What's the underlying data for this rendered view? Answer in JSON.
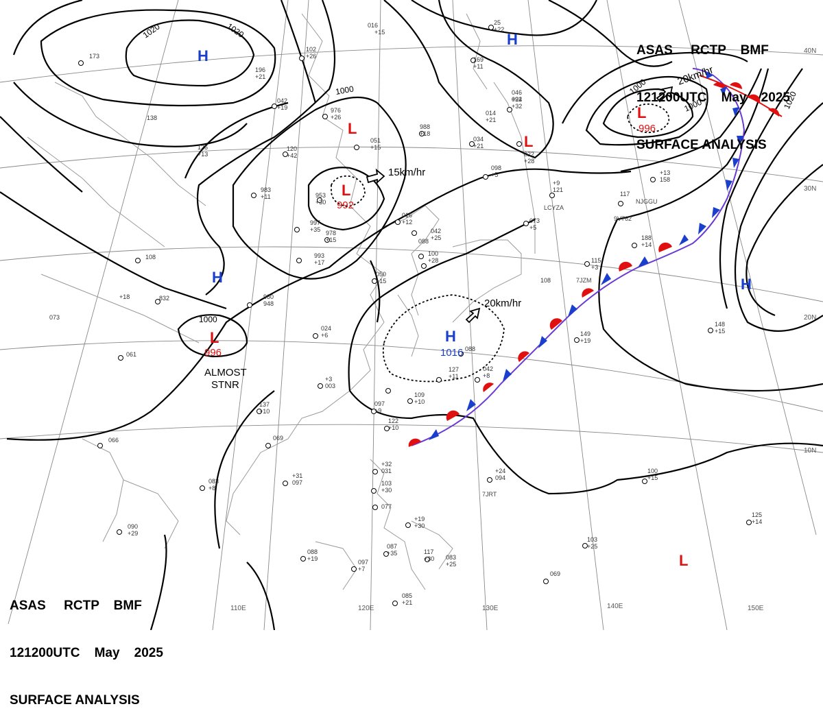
{
  "header": {
    "line1": "ASAS     RCTP    BMF",
    "line2": "121200UTC    May    2025",
    "line3": "SURFACE ANALYSIS"
  },
  "colors": {
    "high": "#1a3fcc",
    "low": "#e01010",
    "front_warm": "#e01010",
    "front_cold": "#1a3fcc",
    "isobar": "#000000",
    "coast": "#999999",
    "grid": "#888888"
  },
  "pressure_centers": [
    {
      "id": "h-northwest",
      "type": "H",
      "value": ""
    },
    {
      "id": "l-north-center",
      "type": "L",
      "value": ""
    },
    {
      "id": "l-mongolia",
      "type": "L",
      "value": "992"
    },
    {
      "id": "l-northeast",
      "type": "L",
      "value": "996"
    },
    {
      "id": "l-manchuria",
      "type": "L",
      "value": ""
    },
    {
      "id": "h-west",
      "type": "H",
      "value": ""
    },
    {
      "id": "l-tibet",
      "type": "L",
      "value": "996"
    },
    {
      "id": "h-taiwan-east",
      "type": "H",
      "value": "1016"
    },
    {
      "id": "h-north-pacific",
      "type": "H",
      "value": ""
    },
    {
      "id": "h-east-pacific",
      "type": "H",
      "value": ""
    },
    {
      "id": "l-southeast",
      "type": "L",
      "value": ""
    }
  ],
  "isobar_labels": [
    "1020",
    "1020",
    "1000",
    "1000",
    "1000",
    "1000",
    "1020"
  ],
  "motions": [
    {
      "id": "motion-mongolia",
      "text": "15km/hr"
    },
    {
      "id": "motion-northeast",
      "text": "20km/hr"
    },
    {
      "id": "motion-taiwan",
      "text": "20km/hr"
    }
  ],
  "annotations": {
    "stationary_line1": "ALMOST",
    "stationary_line2": "STNR"
  },
  "longitude_labels": [
    "110E",
    "120E",
    "130E",
    "140E",
    "150E"
  ],
  "latitude_labels": [
    "40N",
    "30N",
    "20N",
    "10N"
  ],
  "waypoints": [
    "LCYZA",
    "NJGGU",
    "9V762",
    "7JZM",
    "7JRT"
  ],
  "station_values": [
    "016",
    "+15",
    "173",
    "196",
    "+21",
    "042",
    "+19",
    "102",
    "+26",
    "976",
    "+26",
    "988",
    "+18",
    "051",
    "+15",
    "120",
    "+42",
    "126",
    "+13",
    "138",
    "983",
    "+11",
    "953",
    "+30",
    "997",
    "+35",
    "978",
    "+15",
    "993",
    "+17",
    "050",
    "+15",
    "016",
    "+12",
    "042",
    "+25",
    "088",
    "100",
    "+28",
    "108",
    "+18",
    "073",
    "832",
    "980",
    "948",
    "024",
    "+6",
    "061",
    "+3",
    "003",
    "097",
    "+9",
    "109",
    "+10",
    "122",
    "+10",
    "127",
    "+11",
    "042",
    "+8",
    "137",
    "+10",
    "069",
    "+31",
    "097",
    "083",
    "+8",
    "090",
    "+29",
    "066",
    "+32",
    "031",
    "103",
    "+30",
    "077",
    "+19",
    "+30",
    "087",
    "+35",
    "117",
    "+30",
    "083",
    "+25",
    "088",
    "+19",
    "097",
    "+7",
    "085",
    "+21",
    "069",
    "+24",
    "094",
    "103",
    "+25",
    "100",
    "+15",
    "125",
    "+14",
    "149",
    "+19",
    "148",
    "+15",
    "188",
    "+14",
    "115",
    "+3",
    "108",
    "+9",
    "121",
    "073",
    "+5",
    "117",
    "+13",
    "158",
    "098",
    "+5",
    "022",
    "+28",
    "034",
    "+21",
    "014",
    "+21",
    "092",
    "+32",
    "046",
    "+24",
    "25",
    "+22",
    "169",
    "+11",
    "088",
    "+24",
    "155"
  ]
}
